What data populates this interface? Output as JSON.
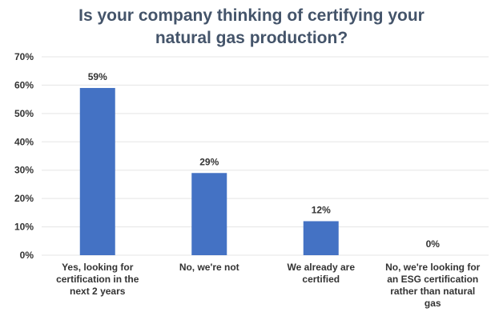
{
  "chart_data": {
    "type": "bar",
    "title": "Is your company thinking of certifying your natural gas production?",
    "title_lines": [
      "Is your company thinking of certifying your",
      "natural gas production?"
    ],
    "categories": [
      "Yes, looking for certification in the next 2 years",
      "No, we're not",
      "We already are certified",
      "No, we're looking for an ESG certification rather than natural gas"
    ],
    "category_lines": [
      [
        "Yes, looking for",
        "certification in the",
        "next 2 years"
      ],
      [
        "No, we're not"
      ],
      [
        "We already are",
        "certified"
      ],
      [
        "No, we're looking for",
        "an ESG certification",
        "rather than natural",
        "gas"
      ]
    ],
    "values": [
      59,
      29,
      12,
      0
    ],
    "data_labels": [
      "59%",
      "29%",
      "12%",
      "0%"
    ],
    "yticks": [
      0,
      10,
      20,
      30,
      40,
      50,
      60,
      70
    ],
    "ytick_labels": [
      "0%",
      "10%",
      "20%",
      "30%",
      "40%",
      "50%",
      "60%",
      "70%"
    ],
    "ylim": [
      0,
      70
    ],
    "grid": true,
    "legend": "none",
    "xlabel": "",
    "ylabel": "",
    "bar_color": "#4472c4",
    "grid_color": "#e5e5e5",
    "title_color": "#44546a"
  }
}
